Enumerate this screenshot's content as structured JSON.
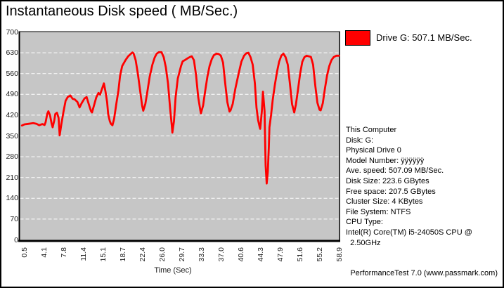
{
  "chart_data": {
    "type": "line",
    "title": "Instantaneous Disk speed ( MB/Sec.)",
    "xlabel": "Time (Sec)",
    "ylabel": "",
    "xlim": [
      0.5,
      58.9
    ],
    "ylim": [
      0,
      700
    ],
    "y_ticks": [
      700,
      630,
      560,
      490,
      420,
      350,
      280,
      210,
      140,
      70,
      0
    ],
    "x_ticks": [
      "0.5",
      "4.1",
      "7.8",
      "11.4",
      "15.1",
      "18.7",
      "22.4",
      "26.0",
      "29.7",
      "33.3",
      "37.0",
      "40.6",
      "44.3",
      "47.9",
      "51.6",
      "55.2",
      "58.9"
    ],
    "grid": "horizontal white dashed",
    "legend_position": "top-right outside",
    "plot_bg": "#c6c6c6",
    "series": [
      {
        "name": "Drive G: 507.1 MB/Sec.",
        "color": "#ff0000",
        "points": [
          [
            0.0,
            385
          ],
          [
            0.5,
            389
          ],
          [
            1.3,
            391
          ],
          [
            2.1,
            393
          ],
          [
            2.7,
            391
          ],
          [
            3.2,
            386
          ],
          [
            3.8,
            390
          ],
          [
            4.2,
            387
          ],
          [
            4.4,
            396
          ],
          [
            4.7,
            424
          ],
          [
            4.9,
            433
          ],
          [
            5.2,
            420
          ],
          [
            5.5,
            392
          ],
          [
            5.7,
            379
          ],
          [
            6.0,
            402
          ],
          [
            6.2,
            424
          ],
          [
            6.5,
            428
          ],
          [
            6.8,
            411
          ],
          [
            7.0,
            352
          ],
          [
            7.3,
            388
          ],
          [
            7.7,
            430
          ],
          [
            8.1,
            468
          ],
          [
            8.5,
            481
          ],
          [
            9.0,
            486
          ],
          [
            9.4,
            475
          ],
          [
            9.8,
            473
          ],
          [
            10.3,
            464
          ],
          [
            10.7,
            446
          ],
          [
            11.1,
            461
          ],
          [
            11.6,
            476
          ],
          [
            12.0,
            481
          ],
          [
            12.4,
            457
          ],
          [
            12.8,
            434
          ],
          [
            13.0,
            429
          ],
          [
            13.4,
            455
          ],
          [
            13.8,
            480
          ],
          [
            14.2,
            495
          ],
          [
            14.5,
            489
          ],
          [
            14.7,
            500
          ],
          [
            15.0,
            516
          ],
          [
            15.2,
            527
          ],
          [
            15.5,
            499
          ],
          [
            15.8,
            464
          ],
          [
            16.0,
            423
          ],
          [
            16.3,
            400
          ],
          [
            16.5,
            391
          ],
          [
            16.8,
            386
          ],
          [
            17.1,
            407
          ],
          [
            17.5,
            457
          ],
          [
            17.9,
            503
          ],
          [
            18.2,
            552
          ],
          [
            18.6,
            585
          ],
          [
            19.2,
            605
          ],
          [
            19.7,
            618
          ],
          [
            20.1,
            625
          ],
          [
            20.5,
            631
          ],
          [
            20.7,
            628
          ],
          [
            21.1,
            605
          ],
          [
            21.5,
            560
          ],
          [
            21.9,
            505
          ],
          [
            22.3,
            452
          ],
          [
            22.5,
            435
          ],
          [
            22.9,
            458
          ],
          [
            23.3,
            503
          ],
          [
            23.7,
            550
          ],
          [
            24.2,
            590
          ],
          [
            24.6,
            613
          ],
          [
            25.0,
            627
          ],
          [
            25.4,
            632
          ],
          [
            25.9,
            632
          ],
          [
            26.3,
            615
          ],
          [
            26.7,
            580
          ],
          [
            27.1,
            525
          ],
          [
            27.5,
            440
          ],
          [
            27.8,
            385
          ],
          [
            27.9,
            361
          ],
          [
            28.2,
            400
          ],
          [
            28.5,
            480
          ],
          [
            28.9,
            543
          ],
          [
            29.5,
            585
          ],
          [
            29.8,
            601
          ],
          [
            30.2,
            605
          ],
          [
            30.8,
            612
          ],
          [
            31.2,
            616
          ],
          [
            31.5,
            618
          ],
          [
            31.9,
            605
          ],
          [
            32.3,
            555
          ],
          [
            32.7,
            480
          ],
          [
            33.1,
            435
          ],
          [
            33.2,
            426
          ],
          [
            33.6,
            452
          ],
          [
            34.0,
            503
          ],
          [
            34.4,
            550
          ],
          [
            34.8,
            585
          ],
          [
            35.2,
            608
          ],
          [
            35.6,
            622
          ],
          [
            36.1,
            627
          ],
          [
            36.5,
            626
          ],
          [
            36.9,
            620
          ],
          [
            37.3,
            597
          ],
          [
            37.7,
            527
          ],
          [
            38.1,
            464
          ],
          [
            38.5,
            432
          ],
          [
            38.7,
            436
          ],
          [
            39.1,
            458
          ],
          [
            39.6,
            510
          ],
          [
            40.2,
            560
          ],
          [
            40.7,
            600
          ],
          [
            41.2,
            620
          ],
          [
            41.6,
            628
          ],
          [
            42.0,
            630
          ],
          [
            42.4,
            615
          ],
          [
            42.8,
            590
          ],
          [
            43.2,
            527
          ],
          [
            43.5,
            445
          ],
          [
            43.8,
            403
          ],
          [
            44.1,
            379
          ],
          [
            44.2,
            374
          ],
          [
            44.5,
            433
          ],
          [
            44.7,
            499
          ],
          [
            45.0,
            433
          ],
          [
            45.1,
            340
          ],
          [
            45.2,
            250
          ],
          [
            45.4,
            190
          ],
          [
            45.6,
            230
          ],
          [
            45.8,
            316
          ],
          [
            45.9,
            379
          ],
          [
            46.2,
            420
          ],
          [
            46.5,
            470
          ],
          [
            46.9,
            520
          ],
          [
            47.3,
            565
          ],
          [
            47.7,
            600
          ],
          [
            48.1,
            620
          ],
          [
            48.5,
            627
          ],
          [
            48.9,
            615
          ],
          [
            49.3,
            590
          ],
          [
            49.7,
            527
          ],
          [
            50.1,
            457
          ],
          [
            50.5,
            429
          ],
          [
            50.8,
            455
          ],
          [
            51.2,
            505
          ],
          [
            51.6,
            560
          ],
          [
            52.0,
            600
          ],
          [
            52.4,
            615
          ],
          [
            52.8,
            620
          ],
          [
            53.2,
            618
          ],
          [
            53.6,
            616
          ],
          [
            54.0,
            590
          ],
          [
            54.4,
            520
          ],
          [
            54.8,
            462
          ],
          [
            55.2,
            438
          ],
          [
            55.4,
            436
          ],
          [
            55.8,
            460
          ],
          [
            56.2,
            510
          ],
          [
            56.6,
            555
          ],
          [
            57.0,
            585
          ],
          [
            57.4,
            605
          ],
          [
            57.8,
            615
          ],
          [
            58.3,
            620
          ],
          [
            58.8,
            620
          ]
        ]
      }
    ]
  },
  "legend": {
    "swatch_color": "#ff0000",
    "label": "Drive G: 507.1 MB/Sec."
  },
  "info": {
    "lines": [
      "This Computer",
      "Disk: G:",
      "Physical Drive 0",
      "Model Number: ÿÿÿÿÿÿ",
      "Ave. speed: 507.09 MB/Sec.",
      "Disk Size: 223.6 GBytes",
      "Free space: 207.5 GBytes",
      "Cluster Size: 4 KBytes",
      "File System: NTFS",
      "CPU Type:",
      "Intel(R) Core(TM) i5-24050S CPU @",
      "  2.50GHz"
    ]
  },
  "footer": {
    "text": "PerformanceTest 7.0 (www.passmark.com)"
  }
}
